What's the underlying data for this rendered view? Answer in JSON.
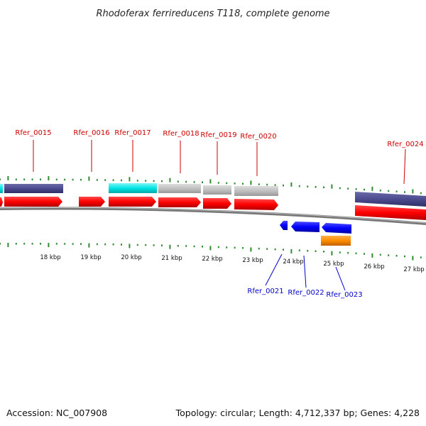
{
  "title": "Rhodoferax ferrireducens T118, complete genome",
  "footer": {
    "accession": "Accession: NC_007908",
    "summary": "Topology: circular; Length: 4,712,337 bp; Genes: 4,228"
  },
  "colors": {
    "tick": "#2e8b2e",
    "top_label": "#cc0000",
    "bottom_label": "#0000cc",
    "cds": "#ff0000",
    "rev_cds": "#0000ff",
    "gene_navy": "#4b4b8f",
    "gene_cyan": "#00e5e5",
    "gene_gray": "#c0c0c0",
    "gene_orange": "#ff8c00",
    "backbone": "#888888"
  },
  "kbp_labels": [
    "18 kbp",
    "19 kbp",
    "20 kbp",
    "21 kbp",
    "22 kbp",
    "23 kbp",
    "24 kbp",
    "25 kbp",
    "26 kbp",
    "27 kbp"
  ],
  "top_labels": [
    "Rfer_0015",
    "Rfer_0016",
    "Rfer_0017",
    "Rfer_0018",
    "Rfer_0019",
    "Rfer_0020",
    "Rfer_0024"
  ],
  "bottom_labels": [
    "Rfer_0021",
    "Rfer_0022",
    "Rfer_0023"
  ]
}
